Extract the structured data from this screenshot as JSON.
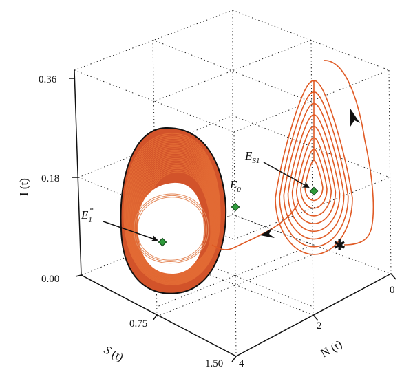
{
  "chart_data": {
    "type": "line",
    "projection": "3d",
    "axes": {
      "x": {
        "label_var": "S",
        "label_arg": " (t)",
        "ticks": [
          "0.75",
          "1.50"
        ]
      },
      "y": {
        "label_var": "N",
        "label_arg": " (t)",
        "ticks": [
          "0",
          "2",
          "4"
        ]
      },
      "z": {
        "label": "I (t)",
        "ticks": [
          "0.00",
          "0.18",
          "0.36"
        ],
        "range": [
          0.0,
          0.36
        ]
      }
    },
    "grid": true,
    "equilibria": [
      {
        "name": "E",
        "sub": "1",
        "sup": "*",
        "marker": "diamond",
        "color": "#2e9a3a"
      },
      {
        "name": "E",
        "sub": "0",
        "marker": "diamond",
        "color": "#2e9a3a"
      },
      {
        "name": "E",
        "sub": "S1",
        "marker": "diamond",
        "color": "#2e9a3a"
      }
    ],
    "series": [
      {
        "kind": "trajectory",
        "color": "#e05a24",
        "start_marker": "*",
        "start_label": "✱"
      },
      {
        "kind": "limit-cycle",
        "color": "#c84a1e",
        "outline_color": "#111111"
      }
    ]
  }
}
